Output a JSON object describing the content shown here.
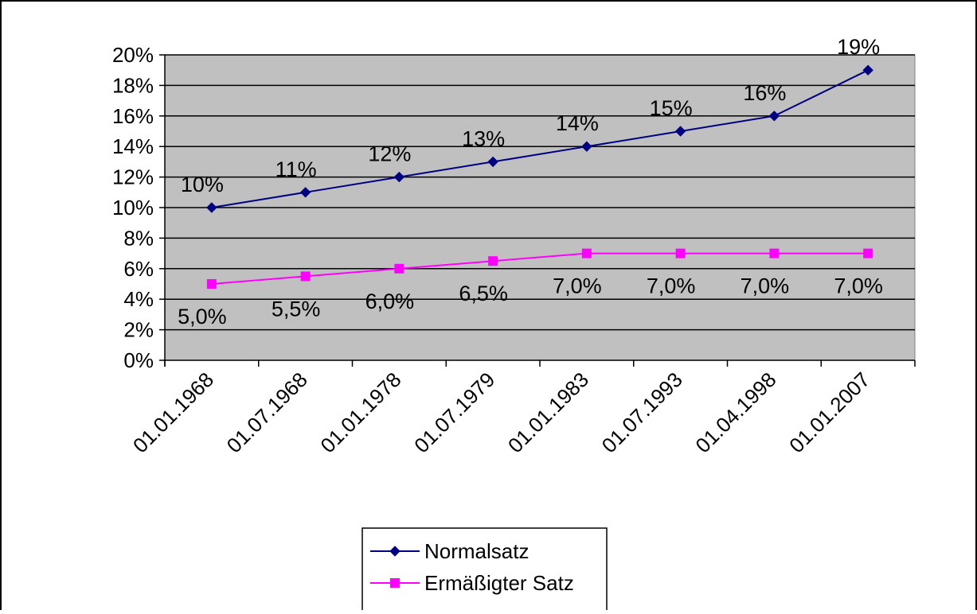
{
  "chart_data": {
    "type": "line",
    "categories": [
      "01.01.1968",
      "01.07.1968",
      "01.01.1978",
      "01.07.1979",
      "01.01.1983",
      "01.07.1993",
      "01.04.1998",
      "01.01.2007"
    ],
    "series": [
      {
        "name": "Normalsatz",
        "values": [
          10,
          11,
          12,
          13,
          14,
          15,
          16,
          19
        ],
        "labels": [
          "10%",
          "11%",
          "12%",
          "13%",
          "14%",
          "15%",
          "16%",
          "19%"
        ],
        "color": "#000080",
        "marker": "diamond"
      },
      {
        "name": "Ermäßigter Satz",
        "values": [
          5.0,
          5.5,
          6.0,
          6.5,
          7.0,
          7.0,
          7.0,
          7.0
        ],
        "labels": [
          "5,0%",
          "5,5%",
          "6,0%",
          "6,5%",
          "7,0%",
          "7,0%",
          "7,0%",
          "7,0%"
        ],
        "color": "#ff00ff",
        "marker": "square"
      }
    ],
    "ylim": [
      0,
      20
    ],
    "yticks": [
      "0%",
      "2%",
      "4%",
      "6%",
      "8%",
      "10%",
      "12%",
      "14%",
      "16%",
      "18%",
      "20%"
    ],
    "plot_background": "#c0c0c0",
    "grid": true,
    "legend_position": "bottom"
  }
}
